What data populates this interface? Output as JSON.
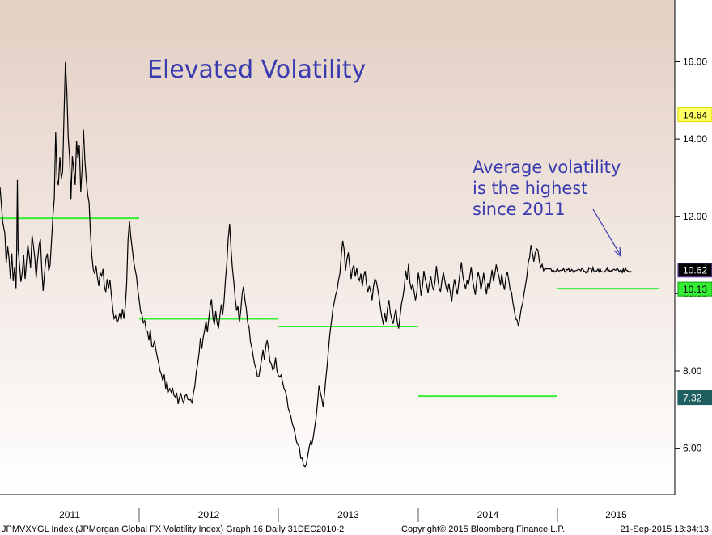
{
  "chart_data": {
    "type": "line",
    "title": "Elevated Volatility",
    "annotation": [
      "Average volatility",
      "is the highest",
      "since 2011"
    ],
    "ylim": [
      4.8,
      17.6
    ],
    "y_ticks": [
      "6.00",
      "8.00",
      "10.00",
      "12.00",
      "14.00",
      "16.00"
    ],
    "year_labels": [
      "2011",
      "2012",
      "2013",
      "2014",
      "2015"
    ],
    "colors": {
      "line": "#000000",
      "average": "#33ee33",
      "title": "#3a3ab0",
      "bg_top": "#e3cfc3",
      "bg_bottom": "#ffffff"
    },
    "series": [
      {
        "x": [
          0,
          0.02,
          0.035,
          0.045,
          0.055,
          0.065,
          0.075,
          0.085,
          0.095,
          0.105,
          0.115,
          0.12,
          0.125,
          0.13,
          0.14,
          0.15,
          0.16,
          0.17,
          0.18,
          0.19,
          0.2,
          0.21,
          0.22,
          0.23,
          0.24,
          0.25,
          0.26,
          0.27,
          0.28,
          0.29,
          0.3,
          0.31,
          0.32,
          0.33,
          0.34,
          0.35,
          0.36,
          0.37,
          0.38,
          0.39,
          0.4,
          0.41,
          0.42,
          0.43,
          0.44,
          0.45,
          0.46,
          0.47,
          0.48,
          0.49,
          0.5,
          0.51,
          0.52,
          0.53,
          0.54,
          0.55,
          0.56,
          0.57,
          0.58,
          0.59,
          0.6,
          0.61,
          0.62,
          0.63,
          0.64,
          0.65,
          0.66,
          0.67,
          0.68,
          0.69,
          0.7,
          0.71,
          0.72,
          0.73,
          0.74,
          0.75,
          0.76,
          0.77,
          0.78,
          0.79,
          0.8,
          0.81,
          0.82,
          0.83,
          0.84,
          0.85,
          0.86,
          0.87,
          0.88,
          0.89,
          0.9,
          0.91,
          0.92,
          0.93,
          0.94,
          0.95,
          0.96,
          0.97,
          0.98,
          0.99,
          1.0,
          1.01,
          1.02,
          1.03,
          1.04,
          1.05,
          1.06,
          1.07,
          1.08,
          1.09,
          1.1,
          1.11,
          1.12,
          1.13,
          1.14,
          1.15,
          1.16,
          1.17,
          1.18,
          1.19,
          1.2,
          1.21,
          1.22,
          1.23,
          1.24,
          1.25,
          1.26,
          1.27,
          1.28,
          1.29,
          1.3,
          1.31,
          1.32,
          1.33,
          1.34,
          1.35,
          1.36,
          1.37,
          1.38,
          1.39,
          1.4,
          1.41,
          1.42,
          1.43,
          1.44,
          1.45,
          1.46,
          1.47,
          1.48,
          1.49,
          1.5,
          1.51,
          1.52,
          1.53,
          1.54,
          1.55,
          1.56,
          1.57,
          1.58,
          1.59,
          1.6,
          1.61,
          1.62,
          1.63,
          1.64,
          1.65,
          1.66,
          1.67,
          1.68,
          1.69,
          1.7,
          1.71,
          1.72,
          1.73,
          1.74,
          1.75,
          1.76,
          1.77,
          1.78,
          1.79,
          1.8,
          1.81,
          1.82,
          1.83,
          1.84,
          1.85,
          1.86,
          1.87,
          1.88,
          1.89,
          1.9,
          1.91,
          1.92,
          1.93,
          1.94,
          1.95,
          1.96,
          1.97,
          1.98,
          1.99,
          2.0,
          2.01,
          2.02,
          2.03,
          2.04,
          2.05,
          2.06,
          2.07,
          2.08,
          2.09,
          2.1,
          2.11,
          2.12,
          2.13,
          2.14,
          2.15,
          2.16,
          2.17,
          2.18,
          2.19,
          2.2,
          2.21,
          2.22,
          2.23,
          2.24,
          2.25,
          2.26,
          2.27,
          2.28,
          2.29,
          2.3,
          2.31,
          2.32,
          2.33,
          2.34,
          2.35,
          2.36,
          2.37,
          2.38,
          2.39,
          2.4,
          2.41,
          2.42,
          2.43,
          2.44,
          2.45,
          2.46,
          2.47,
          2.48,
          2.49,
          2.5,
          2.51,
          2.52,
          2.53,
          2.54,
          2.55,
          2.56,
          2.57,
          2.58,
          2.59,
          2.6,
          2.61,
          2.62,
          2.63,
          2.64,
          2.65,
          2.66,
          2.67,
          2.68,
          2.69,
          2.7,
          2.71,
          2.72,
          2.73,
          2.74,
          2.75,
          2.76,
          2.77,
          2.78,
          2.79,
          2.8,
          2.81,
          2.82,
          2.83,
          2.84,
          2.85,
          2.86,
          2.87,
          2.88,
          2.89,
          2.9,
          2.91,
          2.92,
          2.93,
          2.94,
          2.95,
          2.96,
          2.97,
          2.98,
          2.99,
          3.0,
          3.01,
          3.02,
          3.03,
          3.04,
          3.05,
          3.06,
          3.07,
          3.08,
          3.09,
          3.1,
          3.11,
          3.12,
          3.13,
          3.14,
          3.15,
          3.16,
          3.17,
          3.18,
          3.19,
          3.2,
          3.21,
          3.22,
          3.23,
          3.24,
          3.25,
          3.26,
          3.27,
          3.28,
          3.29,
          3.3,
          3.31,
          3.32,
          3.33,
          3.34,
          3.35,
          3.36,
          3.37,
          3.38,
          3.39,
          3.4,
          3.41,
          3.42,
          3.43,
          3.44,
          3.45,
          3.46,
          3.47,
          3.48,
          3.49,
          3.5,
          3.51,
          3.52,
          3.53,
          3.54,
          3.55,
          3.56,
          3.57,
          3.58,
          3.59,
          3.6,
          3.61,
          3.62,
          3.63,
          3.64,
          3.65,
          3.66,
          3.67,
          3.68,
          3.69,
          3.7,
          3.71,
          3.72,
          3.73,
          3.74,
          3.75,
          3.76,
          3.77,
          3.78,
          3.79,
          3.8,
          3.81,
          3.82,
          3.83,
          3.84,
          3.85,
          3.86,
          3.87,
          3.88,
          3.89,
          3.9,
          3.91,
          3.92,
          3.93,
          3.94,
          3.95,
          3.96,
          3.97,
          3.98,
          3.99,
          4.0,
          4.01,
          4.02,
          4.03,
          4.04,
          4.05,
          4.06,
          4.07,
          4.08,
          4.09,
          4.1,
          4.11,
          4.12,
          4.13,
          4.14,
          4.15,
          4.16,
          4.17,
          4.18,
          4.19,
          4.2,
          4.21,
          4.22,
          4.23,
          4.24,
          4.25,
          4.26,
          4.27,
          4.28,
          4.29,
          4.3,
          4.31,
          4.32,
          4.33,
          4.34,
          4.35,
          4.36,
          4.37,
          4.38,
          4.39,
          4.4,
          4.41,
          4.42,
          4.43,
          4.44,
          4.45,
          4.46,
          4.47,
          4.48,
          4.49,
          4.5,
          4.51,
          4.52,
          4.53,
          4.54,
          4.55,
          4.56,
          4.57,
          4.58,
          4.59,
          4.6,
          4.61,
          4.62,
          4.63,
          4.64,
          4.65,
          4.66,
          4.67,
          4.68,
          4.69,
          4.7,
          4.71,
          4.72,
          4.73
        ],
        "y": [
          12.7,
          11.9,
          11.5,
          10.8,
          11.2,
          10.9,
          10.4,
          11.0,
          10.3,
          10.7,
          10.2,
          11.1,
          12.9,
          11.2,
          10.8,
          10.3,
          10.6,
          11.0,
          10.4,
          10.8,
          11.3,
          11.0,
          10.7,
          11.5,
          11.2,
          10.9,
          10.4,
          10.8,
          11.2,
          11.4,
          10.7,
          10.1,
          10.5,
          10.9,
          11.0,
          10.6,
          10.8,
          11.4,
          12.0,
          12.5,
          14.2,
          13.0,
          12.8,
          13.5,
          13.0,
          13.2,
          14.6,
          16.0,
          15.2,
          14.0,
          13.5,
          12.4,
          13.6,
          13.2,
          12.8,
          14.0,
          13.5,
          13.8,
          12.6,
          13.2,
          14.2,
          13.4,
          13.0,
          12.5,
          12.3,
          11.5,
          11.0,
          10.6,
          10.5,
          10.7,
          10.4,
          10.2,
          10.5,
          10.4,
          10.6,
          10.2,
          10.0,
          10.4,
          10.1,
          10.3,
          10.0,
          9.6,
          9.3,
          9.4,
          9.2,
          9.3,
          9.5,
          9.3,
          9.6,
          9.4,
          9.7,
          10.2,
          11.4,
          11.9,
          11.5,
          11.2,
          10.9,
          10.6,
          10.4,
          10.1,
          9.8,
          9.6,
          9.4,
          9.2,
          9.3,
          9.1,
          9.0,
          8.8,
          9.1,
          8.7,
          8.6,
          8.8,
          8.5,
          8.3,
          8.2,
          8.0,
          7.9,
          7.8,
          7.9,
          7.6,
          7.7,
          7.5,
          7.6,
          7.4,
          7.5,
          7.4,
          7.3,
          7.4,
          7.2,
          7.3,
          7.4,
          7.3,
          7.2,
          7.3,
          7.4,
          7.3,
          7.2,
          7.3,
          7.2,
          7.4,
          7.6,
          8.0,
          8.2,
          8.5,
          8.8,
          8.6,
          8.9,
          9.1,
          9.3,
          9.0,
          9.4,
          9.6,
          9.8,
          9.4,
          9.2,
          9.6,
          9.3,
          9.1,
          9.4,
          9.7,
          9.5,
          9.8,
          10.3,
          10.8,
          11.4,
          11.8,
          11.2,
          10.7,
          10.3,
          9.9,
          9.5,
          9.7,
          9.3,
          9.6,
          10.0,
          10.2,
          9.8,
          9.6,
          9.3,
          9.1,
          8.8,
          8.6,
          8.4,
          8.2,
          8.0,
          7.8,
          7.9,
          8.1,
          8.3,
          8.5,
          8.3,
          8.6,
          8.8,
          8.5,
          8.3,
          8.2,
          8.0,
          8.1,
          8.3,
          8.0,
          7.9,
          7.8,
          7.9,
          7.7,
          7.6,
          7.5,
          7.3,
          7.1,
          7.0,
          6.8,
          6.6,
          6.5,
          6.4,
          6.2,
          6.1,
          6.0,
          5.8,
          5.7,
          5.6,
          5.5,
          5.6,
          5.8,
          6.0,
          6.2,
          6.1,
          6.3,
          6.5,
          6.8,
          7.2,
          7.6,
          7.5,
          7.3,
          7.1,
          7.4,
          7.8,
          8.2,
          8.6,
          9.0,
          9.3,
          9.6,
          9.8,
          10.0,
          10.1,
          10.3,
          10.5,
          11.0,
          11.4,
          11.2,
          10.6,
          10.9,
          11.1,
          10.7,
          10.4,
          10.6,
          10.8,
          10.5,
          10.7,
          10.4,
          10.3,
          10.5,
          10.2,
          10.4,
          10.6,
          10.3,
          10.1,
          10.2,
          10.0,
          9.8,
          10.2,
          10.4,
          10.3,
          10.1,
          9.9,
          9.6,
          9.4,
          9.2,
          9.5,
          9.3,
          9.6,
          9.8,
          9.5,
          9.3,
          9.2,
          9.4,
          9.6,
          9.3,
          9.1,
          9.4,
          9.7,
          9.9,
          10.2,
          10.6,
          10.4,
          10.8,
          10.3,
          10.1,
          10.3,
          10.0,
          9.8,
          10.1,
          10.5,
          10.3,
          10.0,
          10.2,
          10.6,
          10.4,
          10.2,
          10.0,
          10.3,
          10.5,
          10.2,
          10.1,
          10.3,
          10.7,
          10.4,
          10.2,
          10.0,
          10.3,
          10.6,
          10.4,
          10.2,
          10.1,
          10.3,
          10.0,
          9.8,
          10.1,
          10.4,
          10.2,
          10.0,
          10.3,
          10.6,
          10.8,
          10.5,
          10.3,
          10.1,
          10.4,
          10.2,
          10.5,
          10.7,
          10.4,
          10.2,
          10.0,
          10.3,
          10.6,
          10.4,
          10.1,
          10.3,
          10.5,
          10.2,
          10.0,
          10.3,
          10.1,
          10.4,
          10.6,
          10.3,
          10.5,
          10.8,
          10.6,
          10.4,
          10.2,
          10.5,
          10.3,
          10.1,
          10.4,
          10.6,
          10.3,
          10.1,
          10.0,
          9.8,
          9.6,
          9.4,
          9.3,
          9.2,
          9.4,
          9.6,
          9.8,
          10.0,
          10.2,
          10.5,
          10.8,
          11.0,
          11.2,
          11.0,
          10.8,
          11.0,
          11.2,
          11.1,
          10.9,
          10.7,
          10.8,
          10.6,
          10.62,
          10.6,
          10.62,
          10.6,
          10.62,
          10.6,
          10.62,
          10.6,
          10.62,
          10.6,
          10.62,
          10.6,
          10.62,
          10.6,
          10.62,
          10.6,
          10.62,
          10.6,
          10.62,
          10.6,
          10.62,
          10.6,
          10.62,
          10.6,
          10.62,
          10.6,
          10.62,
          10.6,
          10.62,
          10.6,
          10.62,
          10.6,
          10.62,
          10.6,
          10.62,
          10.6,
          10.62,
          10.6,
          10.62,
          10.6,
          10.62,
          10.6,
          10.62,
          10.6,
          10.62,
          10.6,
          10.62,
          10.6,
          10.62,
          10.6,
          10.62,
          10.6,
          10.62,
          10.6,
          10.62,
          10.6,
          10.62,
          10.6,
          10.62,
          10.6,
          10.62,
          10.6,
          10.62,
          10.6,
          10.62,
          10.6,
          10.62,
          10.6,
          10.62,
          10.6,
          10.62,
          10.6,
          10.62,
          10.6,
          10.62,
          10.6,
          10.62,
          10.6,
          10.62,
          10.6,
          10.62,
          10.6,
          10.62
        ]
      }
    ],
    "yearly_averages": [
      {
        "year": "2011",
        "value": 11.95
      },
      {
        "year": "2012",
        "value": 9.35
      },
      {
        "year": "2013",
        "value": 9.15
      },
      {
        "year": "2014",
        "value": 7.35
      },
      {
        "year": "2015",
        "value": 10.13
      }
    ],
    "price_tags": [
      {
        "label": "14.64",
        "value": 14.64,
        "bg": "#ffff66",
        "fg": "#000000",
        "border": "#e0e000"
      },
      {
        "label": "10.62",
        "value": 10.62,
        "bg": "#000000",
        "fg": "#ffffff",
        "border": "#6a3fa0"
      },
      {
        "label": "10.13",
        "value": 10.13,
        "bg": "#33ee33",
        "fg": "#000000",
        "border": "#22aa22"
      },
      {
        "label": "7.32",
        "value": 7.32,
        "bg": "#1f5f5f",
        "fg": "#ffffff",
        "border": "#1f5f5f"
      }
    ]
  },
  "footer": {
    "left": "JPMVXYGL Index (JPMorgan Global FX Volatility Index) Graph 16  Daily 31DEC2010-2",
    "center": "Copyright© 2015 Bloomberg Finance L.P.",
    "right": "21-Sep-2015 13:34:13"
  }
}
